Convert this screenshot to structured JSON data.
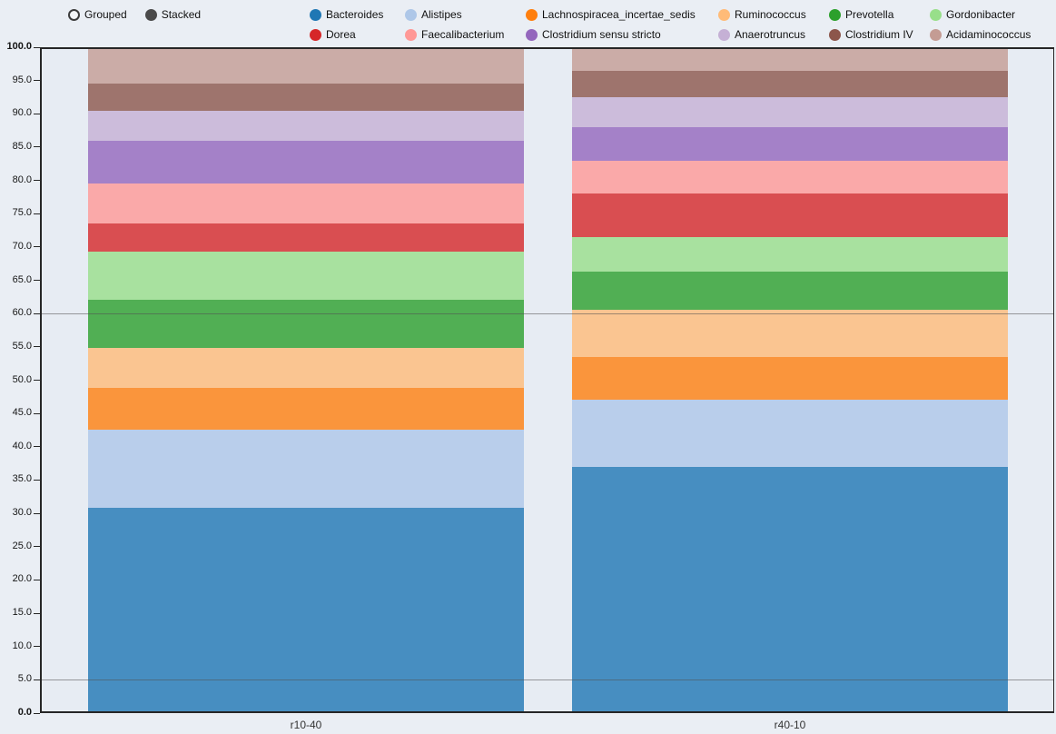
{
  "controls": {
    "grouped_label": "Grouped",
    "stacked_label": "Stacked",
    "selected": "Stacked"
  },
  "chart_data": {
    "type": "bar",
    "stack_mode": "stacked",
    "title": "",
    "xlabel": "",
    "ylabel": "",
    "categories": [
      "r10-40",
      "r40-10"
    ],
    "series": [
      {
        "name": "Bacteroides",
        "color": "#1f77b4",
        "values": [
          30.8,
          37.0
        ]
      },
      {
        "name": "Alistipes",
        "color": "#aec7e8",
        "values": [
          11.8,
          10.1
        ]
      },
      {
        "name": "Lachnospiracea_incertae_sedis",
        "color": "#ff7f0e",
        "values": [
          6.2,
          6.4
        ]
      },
      {
        "name": "Ruminococcus",
        "color": "#ffbb78",
        "values": [
          6.0,
          7.1
        ]
      },
      {
        "name": "Prevotella",
        "color": "#2ca02c",
        "values": [
          7.3,
          5.7
        ]
      },
      {
        "name": "Gordonibacter",
        "color": "#98df8a",
        "values": [
          7.2,
          5.2
        ]
      },
      {
        "name": "Dorea",
        "color": "#d62728",
        "values": [
          4.2,
          6.5
        ]
      },
      {
        "name": "Faecalibacterium",
        "color": "#ff9896",
        "values": [
          6.0,
          4.9
        ]
      },
      {
        "name": "Clostridium sensu stricto",
        "color": "#9467bd",
        "values": [
          6.5,
          5.1
        ]
      },
      {
        "name": "Anaerotruncus",
        "color": "#c5b0d5",
        "values": [
          4.5,
          4.5
        ]
      },
      {
        "name": "Clostridium IV",
        "color": "#8c564b",
        "values": [
          4.0,
          4.0
        ]
      },
      {
        "name": "Acidaminococcus",
        "color": "#c49c94",
        "values": [
          5.5,
          3.5
        ]
      }
    ],
    "ylim": [
      0,
      100
    ],
    "ytick_step": 5,
    "ytick_format": "one_decimal",
    "hlines": [
      5,
      60
    ],
    "grid": false,
    "legend_position": "top"
  }
}
